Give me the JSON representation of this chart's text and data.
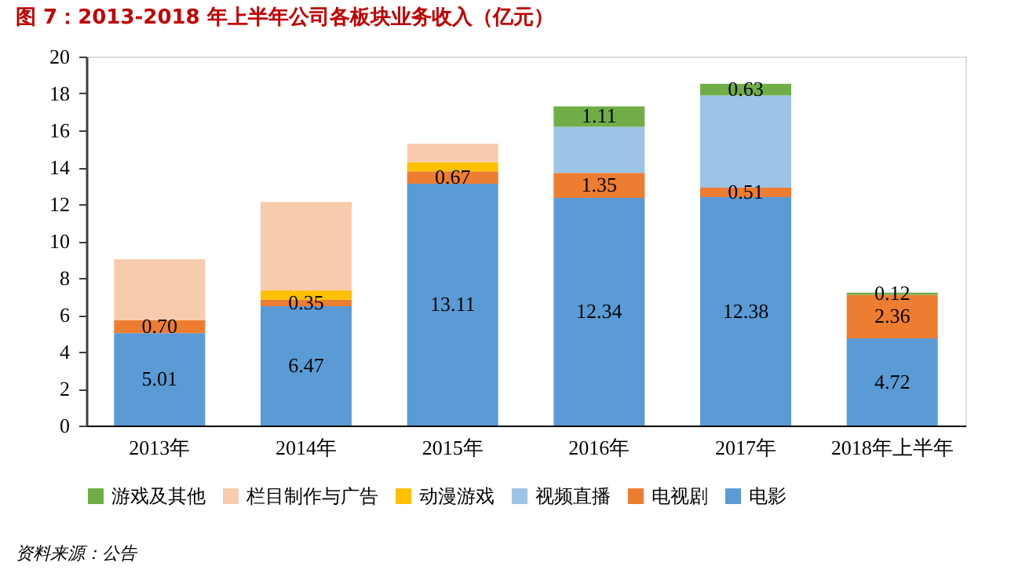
{
  "chart_data": {
    "type": "bar",
    "stacked": true,
    "title": "图 7：2013-2018 年上半年公司各板块业务收入（亿元）",
    "categories": [
      "2013年",
      "2014年",
      "2015年",
      "2016年",
      "2017年",
      "2018年上半年"
    ],
    "series": [
      {
        "name": "电影",
        "color": "#5b9bd5",
        "values": [
          5.01,
          6.47,
          13.11,
          12.34,
          12.38,
          4.72
        ],
        "value_labels": [
          "5.01",
          "6.47",
          "13.11",
          "12.34",
          "12.38",
          "4.72"
        ]
      },
      {
        "name": "电视剧",
        "color": "#ed7d31",
        "values": [
          0.7,
          0.35,
          0.67,
          1.35,
          0.51,
          2.36
        ],
        "value_labels": [
          "0.70",
          "0.35",
          "0.67",
          "1.35",
          "0.51",
          "2.36"
        ]
      },
      {
        "name": "视频直播",
        "color": "#9dc3e6",
        "values": [
          null,
          null,
          null,
          2.5,
          5.0,
          null
        ]
      },
      {
        "name": "动漫游戏",
        "color": "#ffc000",
        "values": [
          null,
          0.5,
          0.5,
          null,
          null,
          null
        ]
      },
      {
        "name": "栏目制作与广告",
        "color": "#f8cbad",
        "values": [
          3.3,
          4.8,
          1.0,
          null,
          null,
          null
        ]
      },
      {
        "name": "游戏及其他",
        "color": "#70ad47",
        "values": [
          null,
          null,
          null,
          1.11,
          0.63,
          0.12
        ],
        "value_labels": [
          null,
          null,
          null,
          "1.11",
          "0.63",
          "0.12"
        ]
      }
    ],
    "ylim": [
      0,
      20
    ],
    "yticks": [
      0,
      2,
      4,
      6,
      8,
      10,
      12,
      14,
      16,
      18,
      20
    ],
    "grid": false,
    "legend": "bottom",
    "annotations": [
      "资料来源：公告"
    ]
  }
}
